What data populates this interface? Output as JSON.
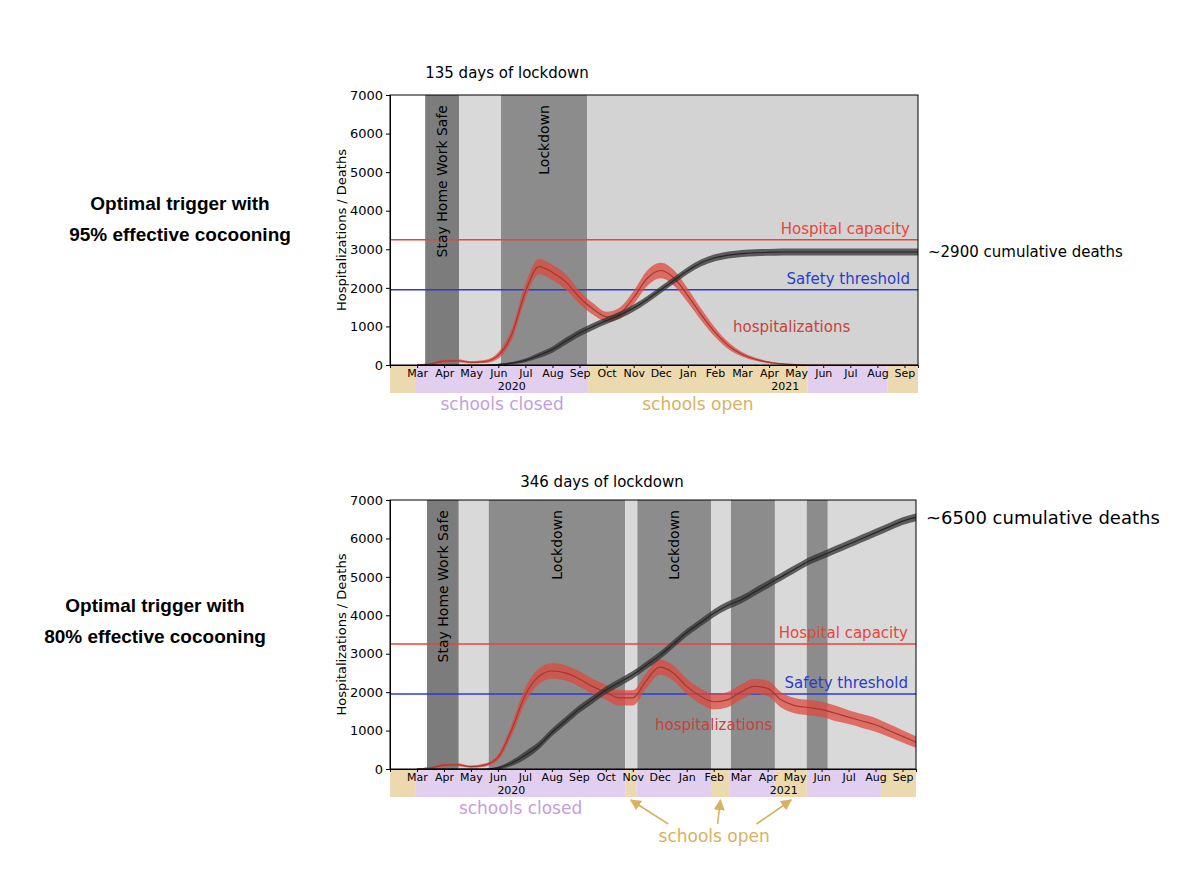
{
  "chart_data": [
    {
      "type": "line",
      "title": "135 days of lockdown",
      "subtitle": [
        "Optimal trigger with",
        "95% effective cocooning"
      ],
      "y_label": "Hospitalizations / Deaths",
      "x": [
        3,
        3.5,
        4,
        4.5,
        5,
        5.5,
        6,
        6.5,
        7,
        7.5,
        8,
        8.5,
        9,
        9.5,
        10,
        10.5,
        11,
        11.5,
        12,
        12.5,
        13,
        13.5,
        14,
        14.5,
        15,
        15.5,
        16,
        16.5,
        17,
        17.5,
        18,
        18.5,
        19,
        19.5,
        20,
        20.5,
        21,
        21.5
      ],
      "xlim": [
        2,
        21.5
      ],
      "xticks": [
        {
          "value": 3,
          "label": "Mar"
        },
        {
          "value": 4,
          "label": "Apr"
        },
        {
          "value": 5,
          "label": "May"
        },
        {
          "value": 6,
          "label": "Jun"
        },
        {
          "value": 7,
          "label": "Jul"
        },
        {
          "value": 8,
          "label": "Aug"
        },
        {
          "value": 9,
          "label": "Sep"
        },
        {
          "value": 10,
          "label": "Oct"
        },
        {
          "value": 11,
          "label": "Nov"
        },
        {
          "value": 12,
          "label": "Dec"
        },
        {
          "value": 13,
          "label": "Jan"
        },
        {
          "value": 14,
          "label": "Feb"
        },
        {
          "value": 15,
          "label": "Mar"
        },
        {
          "value": 16,
          "label": "Apr"
        },
        {
          "value": 17,
          "label": "May"
        },
        {
          "value": 18,
          "label": "Jun"
        },
        {
          "value": 19,
          "label": "Jul"
        },
        {
          "value": 20,
          "label": "Aug"
        },
        {
          "value": 21,
          "label": "Sep"
        }
      ],
      "year_labels": [
        {
          "value": 6.5,
          "label": "2020"
        },
        {
          "value": 16.6,
          "label": "2021"
        }
      ],
      "ylim": [
        0,
        7000
      ],
      "yticks": [
        0,
        1000,
        2000,
        3000,
        4000,
        5000,
        6000,
        7000
      ],
      "series": [
        {
          "name": "hospitalizations",
          "color": "#dd4a3f",
          "values": [
            0,
            30,
            100,
            110,
            70,
            90,
            250,
            800,
            1900,
            2550,
            2400,
            2150,
            1750,
            1450,
            1250,
            1350,
            1750,
            2250,
            2450,
            2250,
            1800,
            1300,
            850,
            500,
            280,
            150,
            70,
            30,
            10,
            0,
            0,
            0,
            0,
            0,
            0,
            0,
            0,
            0
          ],
          "lower": [
            0,
            10,
            60,
            70,
            40,
            50,
            170,
            650,
            1700,
            2350,
            2200,
            1950,
            1580,
            1300,
            1120,
            1200,
            1580,
            2050,
            2250,
            2050,
            1620,
            1150,
            730,
            410,
            220,
            110,
            45,
            15,
            0,
            0,
            0,
            0,
            0,
            0,
            0,
            0,
            0,
            0
          ],
          "upper": [
            0,
            50,
            140,
            150,
            100,
            130,
            330,
            950,
            2100,
            2750,
            2600,
            2350,
            1920,
            1600,
            1380,
            1500,
            1920,
            2450,
            2650,
            2450,
            1980,
            1450,
            970,
            590,
            340,
            190,
            95,
            45,
            20,
            0,
            0,
            0,
            0,
            0,
            0,
            0,
            0,
            0
          ]
        },
        {
          "name": "~2900 cumulative deaths",
          "color": "#333333",
          "values": [
            0,
            0,
            0,
            0,
            0,
            0,
            10,
            50,
            120,
            250,
            400,
            620,
            830,
            1000,
            1150,
            1300,
            1480,
            1700,
            1950,
            2200,
            2450,
            2650,
            2780,
            2850,
            2890,
            2910,
            2920,
            2930,
            2930,
            2930,
            2930,
            2930,
            2930,
            2930,
            2930,
            2930,
            2930,
            2930
          ],
          "lower": [
            0,
            0,
            0,
            0,
            0,
            0,
            0,
            20,
            70,
            180,
            320,
            530,
            740,
            910,
            1060,
            1210,
            1390,
            1610,
            1860,
            2110,
            2360,
            2560,
            2690,
            2760,
            2800,
            2820,
            2830,
            2840,
            2840,
            2840,
            2840,
            2840,
            2840,
            2840,
            2840,
            2840,
            2840,
            2840
          ],
          "upper": [
            0,
            0,
            0,
            0,
            0,
            0,
            30,
            80,
            170,
            320,
            480,
            710,
            920,
            1090,
            1240,
            1390,
            1570,
            1790,
            2040,
            2290,
            2540,
            2740,
            2870,
            2940,
            2980,
            3000,
            3010,
            3020,
            3020,
            3020,
            3020,
            3020,
            3020,
            3020,
            3020,
            3020,
            3020,
            3020
          ]
        }
      ],
      "reference_lines": [
        {
          "label": "Hospital capacity",
          "value": 3250,
          "color": "#e8453c"
        },
        {
          "label": "Safety threshold",
          "value": 1950,
          "color": "#2a3bd1"
        }
      ],
      "periods": [
        {
          "start": 3.3,
          "end": 4.55,
          "color": "#7c7c7c",
          "label": "Stay Home Work Safe"
        },
        {
          "start": 4.55,
          "end": 6.1,
          "color": "#d9d9d9"
        },
        {
          "start": 6.1,
          "end": 9.28,
          "color": "#8c8c8c",
          "label": "Lockdown"
        },
        {
          "start": 9.28,
          "end": 21.5,
          "color": "#d3d3d3"
        }
      ],
      "schools": [
        {
          "label": "schools closed",
          "color": "#c49ee0",
          "spans": [
            [
              2.96,
              9.32
            ],
            [
              17.42,
              20.37
            ]
          ]
        },
        {
          "label": "schools open",
          "color": "#d9b25f",
          "spans": [
            [
              2,
              2.96
            ],
            [
              9.32,
              17.42
            ],
            [
              20.37,
              21.5
            ]
          ]
        }
      ]
    },
    {
      "type": "line",
      "title": "346 days of lockdown",
      "subtitle": [
        "Optimal trigger with",
        "80% effective cocooning"
      ],
      "y_label": "Hospitalizations / Deaths",
      "x": [
        3,
        3.5,
        4,
        4.5,
        5,
        5.5,
        6,
        6.5,
        7,
        7.5,
        8,
        8.5,
        9,
        9.5,
        10,
        10.5,
        11,
        11.5,
        12,
        12.5,
        13,
        13.5,
        14,
        14.5,
        15,
        15.5,
        16,
        16.5,
        17,
        17.5,
        18,
        18.5,
        19,
        19.5,
        20,
        20.5,
        21,
        21.5
      ],
      "xlim": [
        2,
        21.5
      ],
      "xticks": [
        {
          "value": 3,
          "label": "Mar"
        },
        {
          "value": 4,
          "label": "Apr"
        },
        {
          "value": 5,
          "label": "May"
        },
        {
          "value": 6,
          "label": "Jun"
        },
        {
          "value": 7,
          "label": "Jul"
        },
        {
          "value": 8,
          "label": "Aug"
        },
        {
          "value": 9,
          "label": "Sep"
        },
        {
          "value": 10,
          "label": "Oct"
        },
        {
          "value": 11,
          "label": "Nov"
        },
        {
          "value": 12,
          "label": "Dec"
        },
        {
          "value": 13,
          "label": "Jan"
        },
        {
          "value": 14,
          "label": "Feb"
        },
        {
          "value": 15,
          "label": "Mar"
        },
        {
          "value": 16,
          "label": "Apr"
        },
        {
          "value": 17,
          "label": "May"
        },
        {
          "value": 18,
          "label": "Jun"
        },
        {
          "value": 19,
          "label": "Jul"
        },
        {
          "value": 20,
          "label": "Aug"
        },
        {
          "value": 21,
          "label": "Sep"
        }
      ],
      "year_labels": [
        {
          "value": 6.5,
          "label": "2020"
        },
        {
          "value": 16.6,
          "label": "2021"
        }
      ],
      "ylim": [
        0,
        7000
      ],
      "yticks": [
        0,
        1000,
        2000,
        3000,
        4000,
        5000,
        6000,
        7000
      ],
      "series": [
        {
          "name": "hospitalizations",
          "color": "#dd4a3f",
          "values": [
            0,
            30,
            100,
            110,
            60,
            100,
            300,
            1000,
            1900,
            2400,
            2550,
            2500,
            2350,
            2150,
            2000,
            1850,
            1850,
            2300,
            2650,
            2500,
            2150,
            1900,
            1750,
            1800,
            2000,
            2150,
            2100,
            1800,
            1650,
            1600,
            1550,
            1450,
            1350,
            1250,
            1150,
            1000,
            850,
            700
          ],
          "lower": [
            0,
            10,
            60,
            70,
            30,
            60,
            220,
            850,
            1700,
            2200,
            2350,
            2300,
            2150,
            1950,
            1800,
            1650,
            1650,
            2100,
            2450,
            2300,
            1950,
            1700,
            1550,
            1600,
            1800,
            1950,
            1900,
            1600,
            1450,
            1400,
            1350,
            1250,
            1170,
            1070,
            970,
            830,
            690,
            550
          ],
          "upper": [
            0,
            50,
            140,
            150,
            90,
            140,
            380,
            1150,
            2100,
            2600,
            2750,
            2700,
            2550,
            2350,
            2200,
            2050,
            2050,
            2500,
            2850,
            2700,
            2350,
            2100,
            1950,
            2000,
            2200,
            2350,
            2300,
            2000,
            1850,
            1800,
            1750,
            1650,
            1530,
            1430,
            1330,
            1170,
            1010,
            850
          ]
        },
        {
          "name": "~6500 cumulative deaths",
          "color": "#333333",
          "values": [
            0,
            0,
            0,
            0,
            0,
            0,
            30,
            150,
            350,
            600,
            950,
            1250,
            1550,
            1800,
            2050,
            2250,
            2450,
            2700,
            2950,
            3250,
            3550,
            3800,
            4050,
            4250,
            4400,
            4600,
            4800,
            5000,
            5200,
            5400,
            5550,
            5700,
            5850,
            6000,
            6150,
            6300,
            6450,
            6550
          ],
          "lower": [
            0,
            0,
            0,
            0,
            0,
            0,
            0,
            80,
            250,
            500,
            850,
            1150,
            1450,
            1700,
            1950,
            2150,
            2350,
            2600,
            2850,
            3150,
            3450,
            3700,
            3950,
            4150,
            4300,
            4500,
            4700,
            4900,
            5100,
            5300,
            5450,
            5600,
            5750,
            5900,
            6050,
            6200,
            6350,
            6450
          ],
          "upper": [
            0,
            0,
            0,
            0,
            0,
            0,
            60,
            220,
            450,
            700,
            1050,
            1350,
            1650,
            1900,
            2150,
            2350,
            2550,
            2800,
            3050,
            3350,
            3650,
            3900,
            4150,
            4350,
            4500,
            4700,
            4900,
            5100,
            5300,
            5500,
            5650,
            5800,
            5950,
            6100,
            6250,
            6400,
            6550,
            6650
          ]
        }
      ],
      "reference_lines": [
        {
          "label": "Hospital capacity",
          "value": 3250,
          "color": "#e8453c"
        },
        {
          "label": "Safety threshold",
          "value": 1950,
          "color": "#2a3bd1"
        }
      ],
      "periods": [
        {
          "start": 3.37,
          "end": 4.55,
          "color": "#7c7c7c",
          "label": "Stay Home Work Safe"
        },
        {
          "start": 4.55,
          "end": 5.66,
          "color": "#d9d9d9"
        },
        {
          "start": 5.66,
          "end": 10.72,
          "color": "#8c8c8c",
          "label": "Lockdown"
        },
        {
          "start": 10.72,
          "end": 11.17,
          "color": "#d9d9d9"
        },
        {
          "start": 11.17,
          "end": 13.9,
          "color": "#8c8c8c",
          "label": "Lockdown"
        },
        {
          "start": 13.9,
          "end": 14.64,
          "color": "#d9d9d9"
        },
        {
          "start": 14.64,
          "end": 16.27,
          "color": "#8c8c8c"
        },
        {
          "start": 16.27,
          "end": 17.45,
          "color": "#d9d9d9"
        },
        {
          "start": 17.45,
          "end": 18.23,
          "color": "#8c8c8c"
        },
        {
          "start": 18.23,
          "end": 21.5,
          "color": "#d9d9d9"
        }
      ],
      "schools": [
        {
          "label": "schools closed",
          "color": "#c49ee0",
          "spans": [
            [
              2.96,
              10.72
            ],
            [
              11.13,
              13.9
            ],
            [
              14.6,
              16.3
            ],
            [
              17.45,
              20.2
            ]
          ]
        },
        {
          "label": "schools open",
          "color": "#d9b25f",
          "spans": [
            [
              2,
              2.96
            ],
            [
              10.72,
              11.13
            ],
            [
              13.9,
              14.6
            ],
            [
              16.3,
              17.45
            ],
            [
              20.2,
              21.5
            ]
          ]
        }
      ]
    }
  ]
}
